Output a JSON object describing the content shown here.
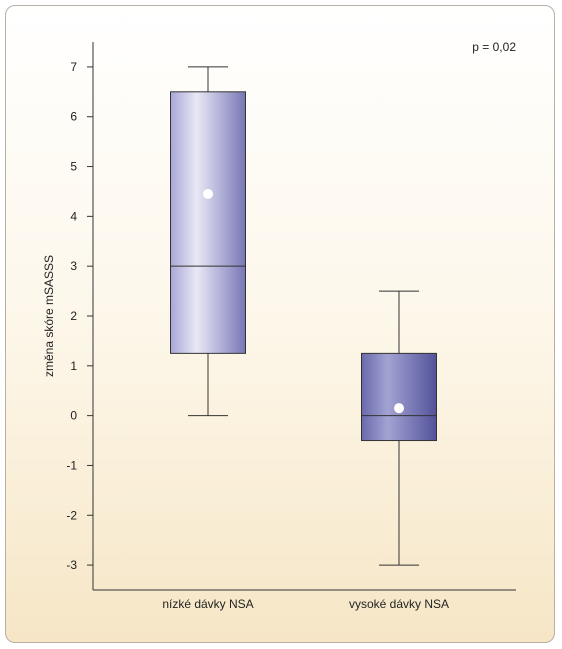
{
  "chart_data": {
    "type": "box",
    "ylabel": "změna skóre mSASSS",
    "xlabel": "",
    "ylim": [
      -3.5,
      7.5
    ],
    "yticks": [
      -3,
      -2,
      -1,
      0,
      1,
      2,
      3,
      4,
      5,
      6,
      7
    ],
    "annotation": "p = 0,02",
    "grid": false,
    "categories": [
      "nízké dávky NSA",
      "vysoké dávky NSA"
    ],
    "boxes": [
      {
        "whisker_low": 0,
        "q1": 1.25,
        "median": 3,
        "q3": 6.5,
        "whisker_high": 7,
        "mean": 4.45
      },
      {
        "whisker_low": -3,
        "q1": -0.5,
        "median": 0,
        "q3": 1.25,
        "whisker_high": 2.5,
        "mean": 0.15
      }
    ],
    "colors": {
      "box_light": "#e9e8f6",
      "box_dark": "#7877b6",
      "box2_light": "#a3a3d3",
      "box2_dark": "#53529a",
      "line": "#333333"
    }
  }
}
